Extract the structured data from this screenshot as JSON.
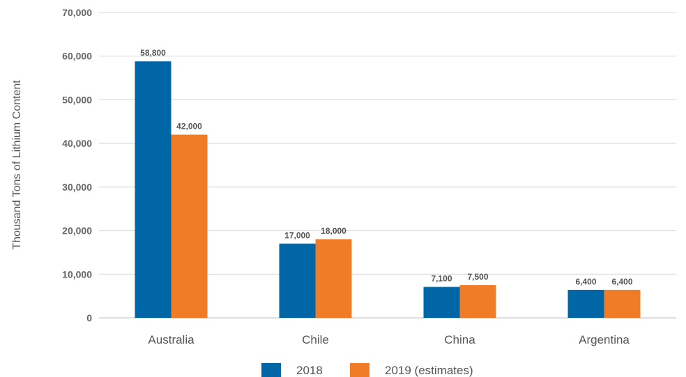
{
  "chart_data": {
    "type": "bar",
    "title": "",
    "xlabel": "",
    "ylabel": "Thousand Tons of Lithium Content",
    "categories": [
      "Australia",
      "Chile",
      "China",
      "Argentina"
    ],
    "series": [
      {
        "name": "2018",
        "values": [
          58800,
          17000,
          7100,
          6400
        ],
        "labels": [
          "58,800",
          "17,000",
          "7,100",
          "6,400"
        ],
        "color": "#0066a6"
      },
      {
        "name": "2019 (estimates)",
        "values": [
          42000,
          18000,
          7500,
          6400
        ],
        "labels": [
          "42,000",
          "18,000",
          "7,500",
          "6,400"
        ],
        "color": "#f07c28"
      }
    ],
    "ylim": [
      0,
      70000
    ],
    "yticks": [
      0,
      10000,
      20000,
      30000,
      40000,
      50000,
      60000,
      70000
    ],
    "ytick_labels": [
      "0",
      "10,000",
      "20,000",
      "30,000",
      "40,000",
      "50,000",
      "60,000",
      "70,000"
    ],
    "grid": true,
    "legend_position": "bottom"
  }
}
